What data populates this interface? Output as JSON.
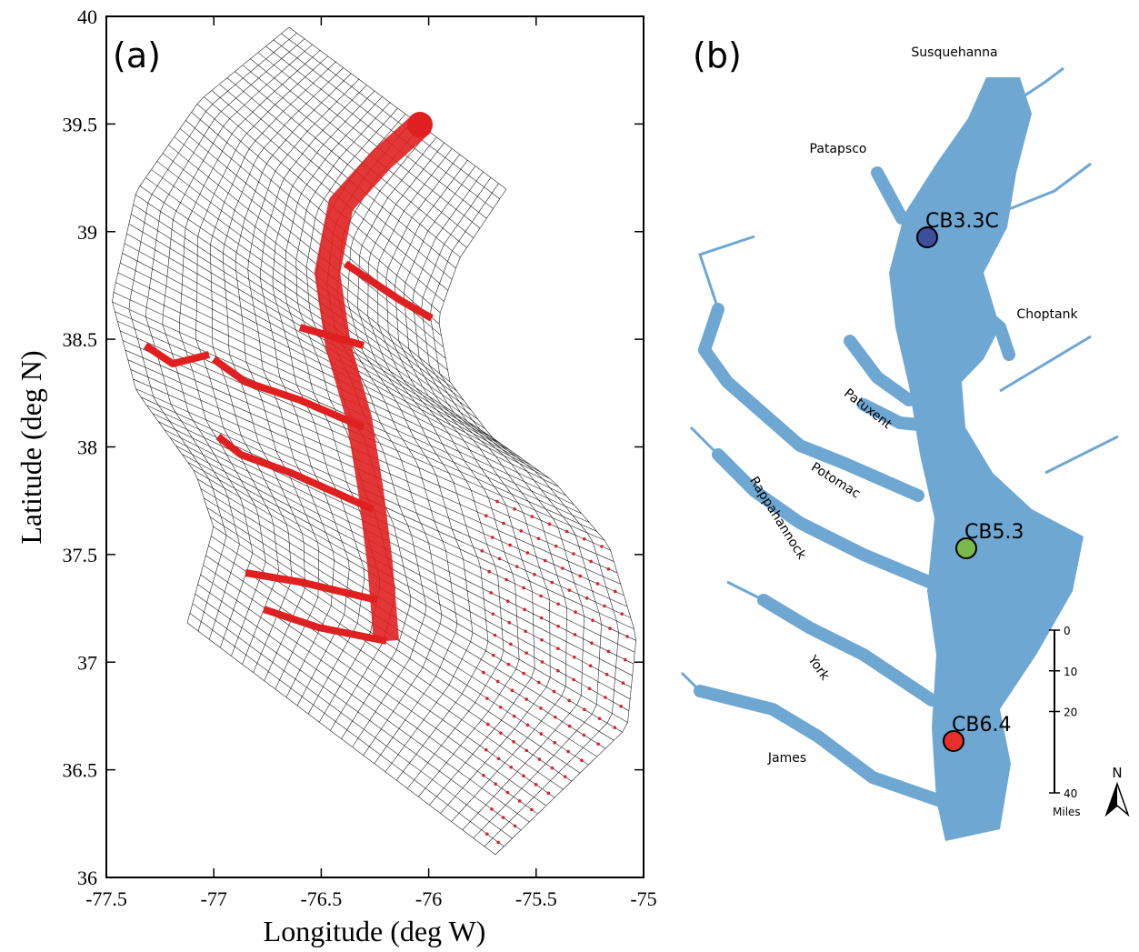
{
  "panel_a": {
    "label": "(a)",
    "x_label": "Longitude (deg W)",
    "y_label": "Latitude (deg N)",
    "xlim": [
      -77.5,
      -75
    ],
    "ylim": [
      36,
      40
    ],
    "xticks": [
      -77.5,
      -77,
      -76.5,
      -76,
      -75.5,
      -75
    ],
    "yticks": [
      36,
      36.5,
      37,
      37.5,
      38,
      38.5,
      39,
      39.5,
      40
    ]
  },
  "panel_b": {
    "label": "(b)",
    "rivers": [
      "Susquehanna",
      "Patapsco",
      "Choptank",
      "Patuxent",
      "Potomac",
      "Rappahannock",
      "York",
      "James"
    ],
    "stations": [
      {
        "name": "CB3.3C",
        "color": "#3b4f9c"
      },
      {
        "name": "CB5.3",
        "color": "#79b84a"
      },
      {
        "name": "CB6.4",
        "color": "#e8302a"
      }
    ],
    "scale": {
      "ticks": [
        0,
        10,
        20,
        40
      ],
      "unit": "Miles"
    },
    "north": "N"
  }
}
